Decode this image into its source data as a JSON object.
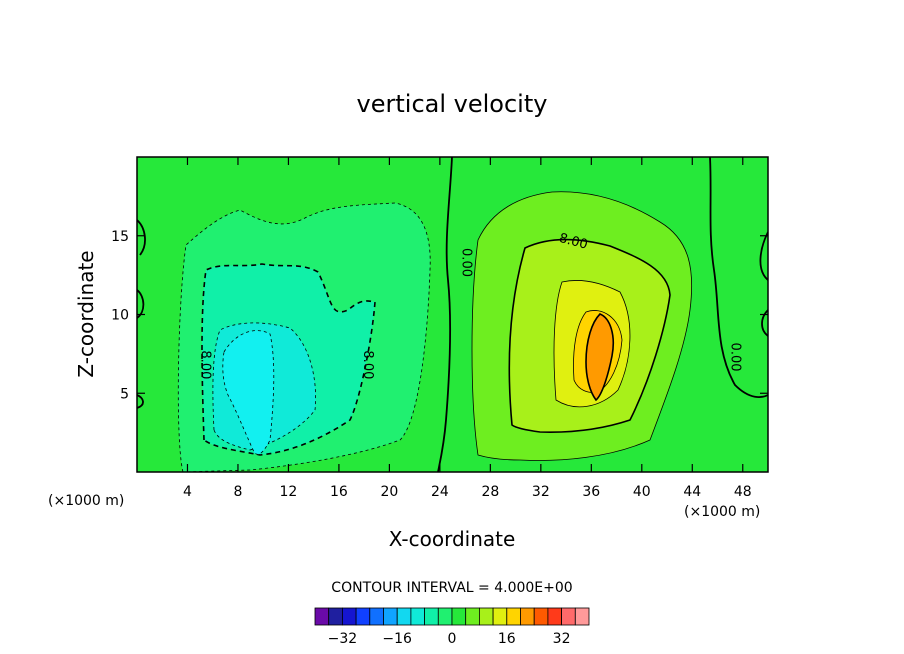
{
  "chart_data": {
    "type": "heatmap",
    "title": "vertical velocity",
    "xlabel": "X-coordinate",
    "ylabel": "Z-coordinate",
    "x_unit_left": "(×1000 m)",
    "x_unit_right": "(×1000 m)",
    "xlim": [
      0,
      50
    ],
    "ylim": [
      0,
      20
    ],
    "x_ticks": [
      4,
      8,
      12,
      16,
      20,
      24,
      28,
      32,
      36,
      40,
      44,
      48
    ],
    "y_ticks": [
      5,
      10,
      15
    ],
    "contour_interval_text": "CONTOUR INTERVAL = 4.000E+00",
    "colorbar": {
      "levels": [
        -36,
        -32,
        -28,
        -24,
        -20,
        -16,
        -12,
        -8,
        -4,
        0,
        4,
        8,
        12,
        16,
        20,
        24,
        28,
        32,
        36
      ],
      "tick_values": [
        -32,
        -16,
        0,
        16,
        32
      ],
      "tick_labels": [
        "−32",
        "−16",
        "0",
        "16",
        "32"
      ],
      "colors": [
        "#6a0aa8",
        "#1f1f9f",
        "#1515d0",
        "#1040ff",
        "#1070ff",
        "#10a4ff",
        "#12d8f0",
        "#10ead8",
        "#10f0a8",
        "#20f070",
        "#26e83a",
        "#6eee20",
        "#a8f01a",
        "#e0f010",
        "#ffd400",
        "#ff9a00",
        "#ff5a00",
        "#ff3a1a",
        "#ff6a6a",
        "#ff9a9a"
      ]
    },
    "contour_labels": [
      {
        "text": "8.00",
        "x": 34.5,
        "y": 14.4
      },
      {
        "text": "0.00",
        "x": 25.8,
        "y": 13.3
      },
      {
        "text": "0.00",
        "x": 47.1,
        "y": 7.3
      },
      {
        "text": "8.00",
        "x": 5.1,
        "y": 6.8
      },
      {
        "text": "8.00",
        "x": 18.0,
        "y": 6.8
      }
    ],
    "features": [
      {
        "name": "downdraft",
        "center": [
          8.5,
          7.0
        ],
        "min_value": -16,
        "extent_x": [
          4,
          20
        ],
        "extent_y": [
          1,
          17
        ]
      },
      {
        "name": "updraft",
        "center": [
          36.5,
          7.2
        ],
        "max_value": 22,
        "extent_x": [
          27,
          44
        ],
        "extent_y": [
          1,
          17
        ]
      }
    ]
  }
}
